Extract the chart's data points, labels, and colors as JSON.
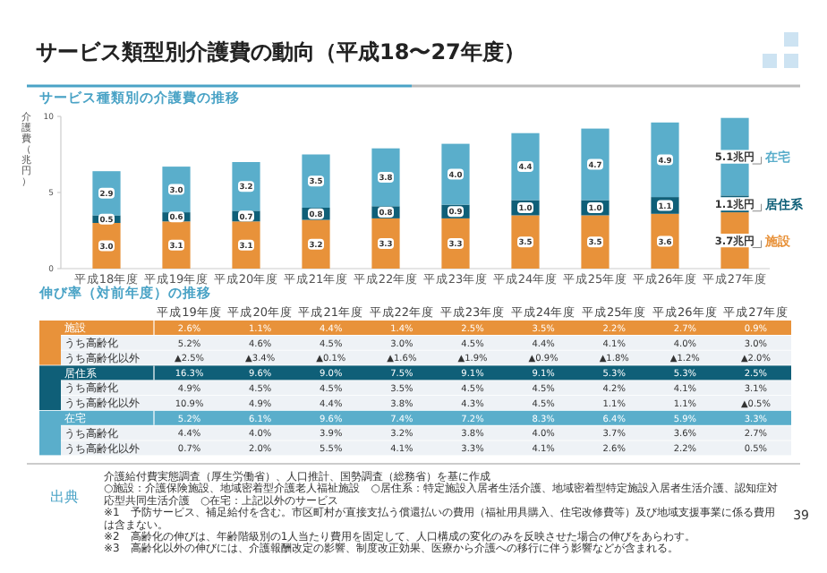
{
  "chart_data": [
    {
      "type": "bar",
      "title": "サービス類型別介護費の動向（平成18〜27年度）",
      "subtitle": "サービス種類別の介護費の推移",
      "ylabel": "介護費（兆円）",
      "stacked": true,
      "legend": "right",
      "ylim": [
        0,
        10
      ],
      "yticks": [
        0,
        5,
        10
      ],
      "categories": [
        "平成18年度",
        "平成19年度",
        "平成20年度",
        "平成21年度",
        "平成22年度",
        "平成23年度",
        "平成24年度",
        "平成25年度",
        "平成26年度",
        "平成27年度"
      ],
      "series": [
        {
          "name": "施設",
          "color": "#e8923a",
          "values": [
            3.0,
            3.1,
            3.1,
            3.2,
            3.3,
            3.3,
            3.5,
            3.5,
            3.6,
            3.7
          ],
          "value_labels": [
            "3.0",
            "3.1",
            "3.1",
            "3.2",
            "3.3",
            "3.3",
            "3.5",
            "3.5",
            "3.6",
            "3.7兆円"
          ]
        },
        {
          "name": "居住系",
          "color": "#0f5f78",
          "values": [
            0.5,
            0.6,
            0.7,
            0.8,
            0.8,
            0.9,
            1.0,
            1.0,
            1.1,
            1.1
          ],
          "value_labels": [
            "0.5",
            "0.6",
            "0.7",
            "0.8",
            "0.8",
            "0.9",
            "1.0",
            "1.0",
            "1.1",
            "1.1兆円"
          ]
        },
        {
          "name": "在宅",
          "color": "#5aaecb",
          "values": [
            2.9,
            3.0,
            3.2,
            3.5,
            3.8,
            4.0,
            4.4,
            4.7,
            4.9,
            5.1
          ],
          "value_labels": [
            "2.9",
            "3.0",
            "3.2",
            "3.5",
            "3.8",
            "4.0",
            "4.4",
            "4.7",
            "4.9",
            "5.1兆円"
          ]
        }
      ]
    },
    {
      "type": "other",
      "title": "伸び率（対前年度）の推移",
      "categories": [
        "平成19年度",
        "平成20年度",
        "平成21年度",
        "平成22年度",
        "平成23年度",
        "平成24年度",
        "平成25年度",
        "平成26年度",
        "平成27年度"
      ],
      "y_categories": [
        "施設",
        "うち高齢化",
        "うち高齢化以外",
        "居住系",
        "うち高齢化",
        "うち高齢化以外",
        "在宅",
        "うち高齢化",
        "うち高齢化以外"
      ],
      "colors": [
        "#e8923a",
        null,
        null,
        "#0f5f78",
        null,
        null,
        "#5aaecb",
        null,
        null
      ],
      "cell_labels": [
        [
          "2.6%",
          "1.1%",
          "4.4%",
          "1.4%",
          "2.5%",
          "3.5%",
          "2.2%",
          "2.7%",
          "0.9%"
        ],
        [
          "5.2%",
          "4.6%",
          "4.5%",
          "3.0%",
          "4.5%",
          "4.4%",
          "4.1%",
          "4.0%",
          "3.0%"
        ],
        [
          "▲2.5%",
          "▲3.4%",
          "▲0.1%",
          "▲1.6%",
          "▲1.9%",
          "▲0.9%",
          "▲1.8%",
          "▲1.2%",
          "▲2.0%"
        ],
        [
          "16.3%",
          "9.6%",
          "9.0%",
          "7.5%",
          "9.1%",
          "9.1%",
          "5.3%",
          "5.3%",
          "2.5%"
        ],
        [
          "4.9%",
          "4.5%",
          "4.5%",
          "3.5%",
          "4.5%",
          "4.5%",
          "4.2%",
          "4.1%",
          "3.1%"
        ],
        [
          "10.9%",
          "4.9%",
          "4.4%",
          "3.8%",
          "4.3%",
          "4.5%",
          "1.1%",
          "1.1%",
          "▲0.5%"
        ],
        [
          "5.2%",
          "6.1%",
          "9.6%",
          "7.4%",
          "7.2%",
          "8.3%",
          "6.4%",
          "5.9%",
          "3.3%"
        ],
        [
          "4.4%",
          "4.0%",
          "3.9%",
          "3.2%",
          "3.8%",
          "4.0%",
          "3.7%",
          "3.6%",
          "2.7%"
        ],
        [
          "0.7%",
          "2.0%",
          "5.5%",
          "4.1%",
          "3.3%",
          "4.1%",
          "2.6%",
          "2.2%",
          "0.5%"
        ]
      ],
      "annotations": [
        "出典",
        "介護給付費実態調査（厚生労働省）、人口推計、国勢調査（総務省）を基に作成",
        "○施設：介護保険施設、地域密着型介護老人福祉施設　○居住系：特定施設入居者生活介護、地域密着型特定施設入居者生活介護、認知症対応型共同生活介護　○在宅：上記以外のサービス",
        "※1　予防サービス、補足給付を含む。市区町村が直接支払う償還払いの費用（福祉用具購入、住宅改修費等）及び地域支援事業に係る費用は含まない。",
        "※2　高齢化の伸びは、年齢階級別の1人当たり費用を固定して、人口構成の変化のみを反映させた場合の伸びをあらわす。",
        "※3　高齢化以外の伸びには、介護報酬改定の影響、制度改正効果、医療から介護への移行に伴う影響などが含まれる。",
        "39"
      ]
    }
  ]
}
